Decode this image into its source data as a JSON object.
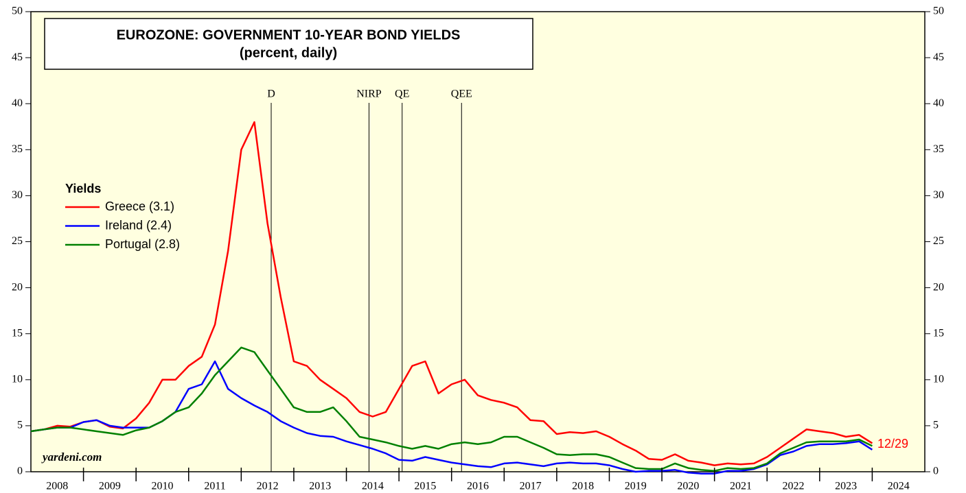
{
  "chart_data": {
    "type": "line",
    "title": "EUROZONE: GOVERNMENT 10-YEAR BOND YIELDS",
    "subtitle": "(percent, daily)",
    "legend_title": "Yields",
    "source": "yardeni.com",
    "date_label": "12/29",
    "x": [
      2008.0,
      2008.25,
      2008.5,
      2008.75,
      2009.0,
      2009.25,
      2009.5,
      2009.75,
      2010.0,
      2010.25,
      2010.5,
      2010.75,
      2011.0,
      2011.25,
      2011.5,
      2011.75,
      2012.0,
      2012.25,
      2012.5,
      2012.75,
      2013.0,
      2013.25,
      2013.5,
      2013.75,
      2014.0,
      2014.25,
      2014.5,
      2014.75,
      2015.0,
      2015.25,
      2015.5,
      2015.75,
      2016.0,
      2016.25,
      2016.5,
      2016.75,
      2017.0,
      2017.25,
      2017.5,
      2017.75,
      2018.0,
      2018.25,
      2018.5,
      2018.75,
      2019.0,
      2019.25,
      2019.5,
      2019.75,
      2020.0,
      2020.25,
      2020.5,
      2020.75,
      2021.0,
      2021.25,
      2021.5,
      2021.75,
      2022.0,
      2022.25,
      2022.5,
      2022.75,
      2023.0,
      2023.25,
      2023.5,
      2023.75,
      2024.0
    ],
    "series": [
      {
        "name": "Greece (3.1)",
        "color": "#ff0000",
        "values": [
          4.4,
          4.6,
          5.0,
          4.9,
          5.4,
          5.6,
          4.9,
          4.7,
          5.8,
          7.5,
          10.0,
          10.0,
          11.5,
          12.5,
          16.0,
          24.0,
          35.0,
          38.0,
          27.0,
          19.0,
          12.0,
          11.5,
          10.0,
          9.0,
          8.0,
          6.5,
          6.0,
          6.5,
          9.0,
          11.5,
          12.0,
          8.5,
          9.5,
          10.0,
          8.3,
          7.8,
          7.5,
          7.0,
          5.6,
          5.5,
          4.1,
          4.3,
          4.2,
          4.4,
          3.8,
          3.0,
          2.3,
          1.4,
          1.3,
          1.9,
          1.2,
          1.0,
          0.7,
          0.9,
          0.8,
          0.9,
          1.6,
          2.6,
          3.6,
          4.6,
          4.4,
          4.2,
          3.8,
          4.0,
          3.1
        ]
      },
      {
        "name": "Ireland (2.4)",
        "color": "#0000ff",
        "values": [
          4.4,
          4.6,
          4.8,
          4.8,
          5.4,
          5.6,
          5.0,
          4.8,
          4.8,
          4.8,
          5.5,
          6.5,
          9.0,
          9.5,
          12.0,
          9.0,
          8.0,
          7.2,
          6.5,
          5.5,
          4.8,
          4.2,
          3.9,
          3.8,
          3.3,
          2.9,
          2.5,
          2.0,
          1.3,
          1.2,
          1.6,
          1.3,
          1.0,
          0.8,
          0.6,
          0.5,
          0.9,
          1.0,
          0.8,
          0.6,
          0.9,
          1.0,
          0.9,
          0.9,
          0.7,
          0.3,
          0.0,
          0.1,
          0.1,
          0.2,
          -0.1,
          -0.2,
          -0.2,
          0.1,
          0.1,
          0.3,
          0.8,
          1.8,
          2.2,
          2.8,
          3.0,
          3.0,
          3.1,
          3.3,
          2.4
        ]
      },
      {
        "name": "Portugal (2.8)",
        "color": "#008000",
        "values": [
          4.4,
          4.6,
          4.8,
          4.8,
          4.6,
          4.4,
          4.2,
          4.0,
          4.5,
          4.8,
          5.5,
          6.5,
          7.0,
          8.5,
          10.5,
          12.0,
          13.5,
          13.0,
          11.0,
          9.0,
          7.0,
          6.5,
          6.5,
          7.0,
          5.5,
          3.8,
          3.5,
          3.2,
          2.8,
          2.5,
          2.8,
          2.5,
          3.0,
          3.2,
          3.0,
          3.2,
          3.8,
          3.8,
          3.2,
          2.6,
          1.9,
          1.8,
          1.9,
          1.9,
          1.6,
          1.0,
          0.4,
          0.3,
          0.3,
          0.9,
          0.4,
          0.2,
          0.1,
          0.4,
          0.3,
          0.4,
          0.9,
          2.0,
          2.6,
          3.2,
          3.3,
          3.3,
          3.3,
          3.5,
          2.8
        ]
      }
    ],
    "annotations": [
      {
        "label": "D",
        "x": 2012.57
      },
      {
        "label": "NIRP",
        "x": 2014.43
      },
      {
        "label": "QE",
        "x": 2015.06
      },
      {
        "label": "QEE",
        "x": 2016.19
      }
    ],
    "xlim": [
      2008,
      2025
    ],
    "xticks": [
      {
        "value": 2008.5,
        "label": "2008"
      },
      {
        "value": 2009.5,
        "label": "2009"
      },
      {
        "value": 2010.5,
        "label": "2010"
      },
      {
        "value": 2011.5,
        "label": "2011"
      },
      {
        "value": 2012.5,
        "label": "2012"
      },
      {
        "value": 2013.5,
        "label": "2013"
      },
      {
        "value": 2014.5,
        "label": "2014"
      },
      {
        "value": 2015.5,
        "label": "2015"
      },
      {
        "value": 2016.5,
        "label": "2016"
      },
      {
        "value": 2017.5,
        "label": "2017"
      },
      {
        "value": 2018.5,
        "label": "2018"
      },
      {
        "value": 2019.5,
        "label": "2019"
      },
      {
        "value": 2020.5,
        "label": "2020"
      },
      {
        "value": 2021.5,
        "label": "2021"
      },
      {
        "value": 2022.5,
        "label": "2022"
      },
      {
        "value": 2023.5,
        "label": "2023"
      },
      {
        "value": 2024.5,
        "label": "2024"
      }
    ],
    "ylim": [
      0,
      50
    ],
    "yticks": [
      0,
      5,
      10,
      15,
      20,
      25,
      30,
      35,
      40,
      45,
      50
    ],
    "y2lim": [
      0,
      50
    ],
    "y2ticks": [
      0,
      5,
      10,
      15,
      20,
      25,
      30,
      35,
      40,
      45,
      50
    ],
    "grid": false
  }
}
